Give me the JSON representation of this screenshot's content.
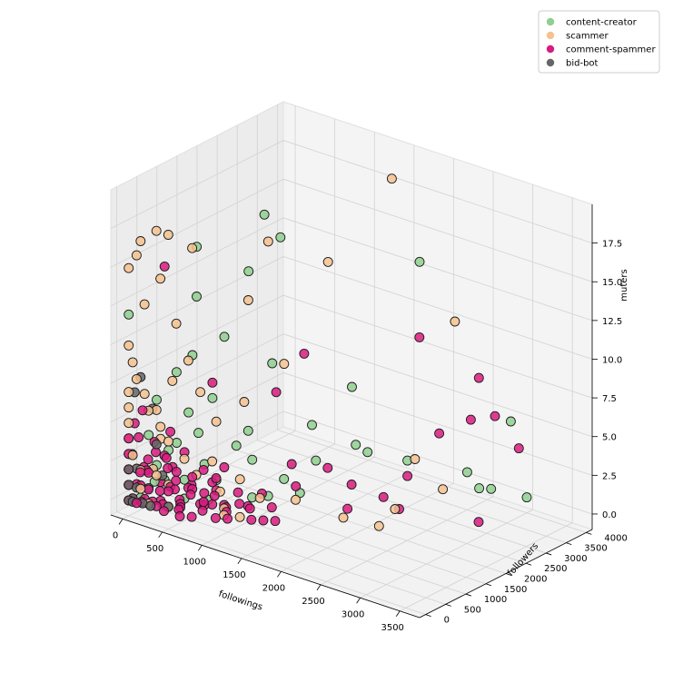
{
  "chart_data": {
    "type": "scatter",
    "projection": "3d",
    "title": "",
    "xlabel": "followings",
    "ylabel": "followers",
    "zlabel": "muters",
    "xlim": [
      -150,
      3750
    ],
    "ylim": [
      -150,
      4150
    ],
    "zlim": [
      -1,
      20
    ],
    "x_ticks": [
      0,
      500,
      1000,
      1500,
      2000,
      2500,
      3000,
      3500
    ],
    "x_tick_labels": [
      "0",
      "500",
      "1000",
      "1500",
      "2000",
      "2500",
      "3000",
      "3500"
    ],
    "y_ticks": [
      0,
      500,
      1000,
      1500,
      2000,
      2500,
      3000,
      3500,
      4000
    ],
    "y_tick_labels": [
      "0",
      "500",
      "1000",
      "1500",
      "2000",
      "2500",
      "3000",
      "3500",
      "4000"
    ],
    "z_ticks": [
      0,
      2.5,
      5,
      7.5,
      10,
      12.5,
      15,
      17.5
    ],
    "z_tick_labels": [
      "0.0",
      "2.5",
      "5.0",
      "7.5",
      "10.0",
      "12.5",
      "15.0",
      "17.5"
    ],
    "grid": true,
    "legend_position": "top-right",
    "series": [
      {
        "name": "content-creator",
        "color": "#8fcf8f",
        "points": [
          [
            3000,
            4000,
            0
          ],
          [
            2500,
            3800,
            0
          ],
          [
            2600,
            3900,
            0
          ],
          [
            2400,
            3700,
            1
          ],
          [
            2000,
            3000,
            2
          ],
          [
            1800,
            2400,
            3
          ],
          [
            2900,
            3800,
            5
          ],
          [
            1900,
            3500,
            14
          ],
          [
            700,
            2400,
            15
          ],
          [
            500,
            2000,
            13
          ],
          [
            250,
            1200,
            12
          ],
          [
            200,
            1300,
            15
          ],
          [
            600,
            1200,
            10
          ],
          [
            700,
            2000,
            17
          ],
          [
            900,
            1800,
            8
          ],
          [
            1400,
            2800,
            6
          ],
          [
            1200,
            2200,
            4
          ],
          [
            1600,
            2500,
            3
          ],
          [
            800,
            1500,
            2
          ],
          [
            300,
            900,
            5
          ],
          [
            200,
            800,
            3
          ],
          [
            150,
            400,
            2
          ],
          [
            350,
            700,
            1
          ],
          [
            500,
            900,
            2
          ],
          [
            400,
            600,
            0
          ],
          [
            600,
            1000,
            1
          ],
          [
            1000,
            1500,
            0
          ],
          [
            1100,
            1700,
            1
          ],
          [
            700,
            1300,
            3
          ],
          [
            500,
            1100,
            6
          ],
          [
            300,
            600,
            8
          ],
          [
            400,
            800,
            9
          ],
          [
            100,
            300,
            4
          ],
          [
            200,
            500,
            1
          ],
          [
            800,
            1400,
            4
          ],
          [
            1300,
            2100,
            2
          ],
          [
            50,
            200,
            0
          ],
          [
            150,
            350,
            1
          ],
          [
            250,
            500,
            3
          ],
          [
            600,
            800,
            0
          ],
          [
            900,
            1300,
            0
          ],
          [
            1200,
            1900,
            0
          ],
          [
            100,
            500,
            6
          ],
          [
            450,
            850,
            4
          ],
          [
            0,
            0,
            12
          ]
        ]
      },
      {
        "name": "scammer",
        "color": "#f5c28f",
        "points": [
          [
            150,
            0,
            17
          ],
          [
            350,
            0,
            18
          ],
          [
            500,
            0,
            18
          ],
          [
            0,
            0,
            15
          ],
          [
            100,
            0,
            16
          ],
          [
            200,
            0,
            13
          ],
          [
            400,
            0,
            15
          ],
          [
            650,
            300,
            17
          ],
          [
            500,
            200,
            12
          ],
          [
            0,
            0,
            10
          ],
          [
            50,
            0,
            9
          ],
          [
            100,
            0,
            8
          ],
          [
            150,
            100,
            7
          ],
          [
            200,
            100,
            6
          ],
          [
            300,
            200,
            5
          ],
          [
            350,
            300,
            4
          ],
          [
            250,
            200,
            6
          ],
          [
            400,
            300,
            8
          ],
          [
            0,
            0,
            7
          ],
          [
            0,
            0,
            6
          ],
          [
            0,
            0,
            5
          ],
          [
            0,
            0,
            4
          ],
          [
            0,
            0,
            3
          ],
          [
            0,
            0,
            2
          ],
          [
            0,
            0,
            1
          ],
          [
            0,
            0,
            0
          ],
          [
            50,
            0,
            3
          ],
          [
            100,
            100,
            2
          ],
          [
            150,
            0,
            1
          ],
          [
            200,
            100,
            0
          ],
          [
            300,
            100,
            2
          ],
          [
            500,
            400,
            3
          ],
          [
            600,
            500,
            2
          ],
          [
            800,
            700,
            1
          ],
          [
            1000,
            800,
            2
          ],
          [
            1200,
            900,
            1
          ],
          [
            1500,
            1200,
            1
          ],
          [
            1900,
            1600,
            0
          ],
          [
            2300,
            1700,
            0
          ],
          [
            2400,
            1900,
            1
          ],
          [
            2700,
            2500,
            2
          ],
          [
            2500,
            2200,
            4
          ],
          [
            2600,
            3000,
            12
          ],
          [
            1600,
            3400,
            19
          ],
          [
            1200,
            2600,
            14
          ],
          [
            900,
            1700,
            16
          ],
          [
            700,
            1600,
            12
          ],
          [
            800,
            1300,
            6
          ],
          [
            1000,
            1900,
            8
          ],
          [
            450,
            600,
            9
          ],
          [
            550,
            700,
            7
          ],
          [
            650,
            900,
            5
          ],
          [
            750,
            600,
            3
          ],
          [
            850,
            700,
            0
          ],
          [
            950,
            500,
            0
          ],
          [
            1100,
            600,
            0
          ],
          [
            300,
            400,
            1
          ],
          [
            400,
            200,
            0
          ],
          [
            250,
            300,
            4
          ],
          [
            180,
            250,
            2
          ]
        ]
      },
      {
        "name": "comment-spammer",
        "color": "#d81b7f",
        "points": [
          [
            3000,
            2800,
            0
          ],
          [
            2800,
            3000,
            6
          ],
          [
            2700,
            3400,
            8
          ],
          [
            2700,
            3800,
            5
          ],
          [
            2900,
            4000,
            3
          ],
          [
            2300,
            3200,
            4
          ],
          [
            2000,
            3000,
            1
          ],
          [
            1900,
            2600,
            0
          ],
          [
            1700,
            2200,
            1
          ],
          [
            1800,
            1900,
            0
          ],
          [
            2200,
            2400,
            0
          ],
          [
            1500,
            2000,
            2
          ],
          [
            1300,
            1600,
            1
          ],
          [
            1200,
            1200,
            0
          ],
          [
            1000,
            1000,
            0
          ],
          [
            1400,
            1300,
            3
          ],
          [
            2100,
            3100,
            10
          ],
          [
            1000,
            2400,
            8
          ],
          [
            900,
            1900,
            6
          ],
          [
            500,
            1100,
            7
          ],
          [
            250,
            400,
            15
          ],
          [
            600,
            900,
            1
          ],
          [
            700,
            1000,
            2
          ],
          [
            800,
            800,
            0
          ],
          [
            400,
            600,
            3
          ],
          [
            300,
            500,
            2
          ],
          [
            200,
            400,
            1
          ],
          [
            100,
            200,
            0
          ],
          [
            50,
            100,
            1
          ],
          [
            150,
            150,
            2
          ],
          [
            250,
            300,
            0
          ],
          [
            350,
            350,
            1
          ],
          [
            450,
            400,
            0
          ],
          [
            550,
            500,
            1
          ],
          [
            650,
            600,
            0
          ],
          [
            750,
            700,
            1
          ],
          [
            850,
            750,
            0
          ],
          [
            950,
            850,
            1
          ],
          [
            1050,
            950,
            0
          ],
          [
            1150,
            1050,
            1
          ],
          [
            0,
            0,
            0
          ],
          [
            0,
            0,
            1
          ],
          [
            0,
            0,
            2
          ],
          [
            0,
            0,
            3
          ],
          [
            0,
            0,
            4
          ],
          [
            0,
            100,
            0
          ],
          [
            100,
            0,
            0
          ],
          [
            100,
            100,
            1
          ],
          [
            200,
            100,
            2
          ],
          [
            200,
            200,
            0
          ],
          [
            300,
            100,
            0
          ],
          [
            300,
            300,
            3
          ],
          [
            400,
            200,
            1
          ],
          [
            400,
            400,
            2
          ],
          [
            500,
            300,
            0
          ],
          [
            500,
            500,
            1
          ],
          [
            600,
            400,
            2
          ],
          [
            600,
            600,
            0
          ],
          [
            700,
            500,
            1
          ],
          [
            700,
            700,
            0
          ],
          [
            800,
            600,
            2
          ],
          [
            50,
            50,
            5
          ],
          [
            150,
            50,
            6
          ],
          [
            250,
            150,
            4
          ],
          [
            350,
            250,
            3
          ],
          [
            450,
            150,
            5
          ],
          [
            120,
            80,
            0
          ],
          [
            220,
            60,
            1
          ],
          [
            320,
            220,
            0
          ],
          [
            420,
            320,
            1
          ],
          [
            520,
            220,
            0
          ],
          [
            620,
            320,
            1
          ],
          [
            720,
            420,
            0
          ],
          [
            820,
            520,
            1
          ],
          [
            920,
            620,
            0
          ],
          [
            80,
            220,
            2
          ],
          [
            180,
            320,
            3
          ],
          [
            280,
            420,
            2
          ],
          [
            380,
            520,
            0
          ],
          [
            480,
            620,
            1
          ],
          [
            580,
            720,
            2
          ],
          [
            30,
            30,
            3
          ],
          [
            60,
            130,
            4
          ],
          [
            130,
            30,
            2
          ],
          [
            230,
            30,
            3
          ],
          [
            330,
            130,
            1
          ],
          [
            430,
            30,
            0
          ],
          [
            530,
            130,
            2
          ],
          [
            630,
            30,
            0
          ],
          [
            730,
            130,
            0
          ],
          [
            830,
            230,
            1
          ],
          [
            930,
            330,
            0
          ],
          [
            1030,
            430,
            0
          ],
          [
            1130,
            530,
            1
          ],
          [
            1230,
            630,
            0
          ],
          [
            1330,
            730,
            0
          ],
          [
            1430,
            830,
            0
          ]
        ]
      },
      {
        "name": "bid-bot",
        "color": "#666666",
        "points": [
          [
            0,
            0,
            0
          ],
          [
            0,
            0,
            1
          ],
          [
            0,
            0,
            2
          ],
          [
            50,
            0,
            0
          ],
          [
            100,
            0,
            1
          ],
          [
            0,
            100,
            0
          ],
          [
            50,
            100,
            2
          ],
          [
            150,
            50,
            0
          ],
          [
            200,
            100,
            1
          ],
          [
            250,
            50,
            0
          ],
          [
            300,
            100,
            4
          ],
          [
            200,
            200,
            6
          ],
          [
            100,
            100,
            8
          ],
          [
            50,
            50,
            7
          ],
          [
            400,
            200,
            0
          ],
          [
            350,
            150,
            2
          ]
        ]
      }
    ]
  }
}
